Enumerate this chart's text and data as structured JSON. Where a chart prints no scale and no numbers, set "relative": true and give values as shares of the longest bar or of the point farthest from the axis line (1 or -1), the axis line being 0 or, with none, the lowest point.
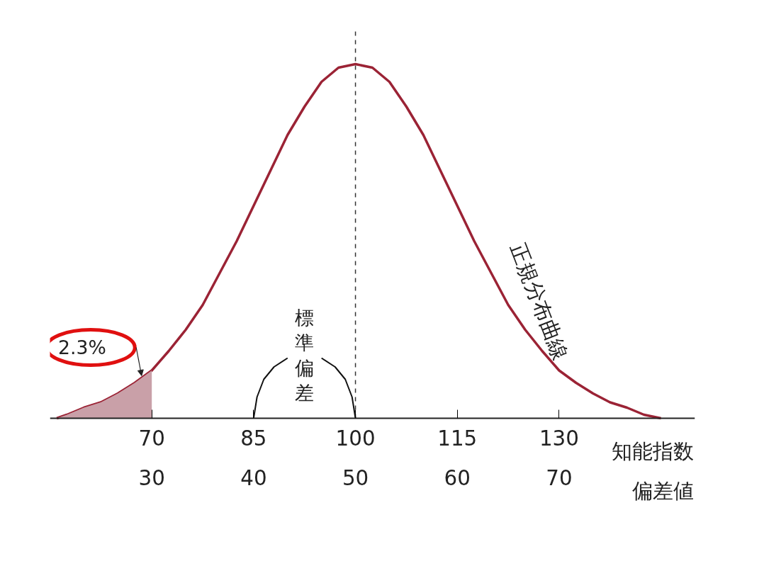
{
  "chart_data": {
    "type": "line",
    "relative": true,
    "xlabel": "知能指数",
    "x2label": "偏差値",
    "xlim": [
      55,
      150
    ],
    "xticks": [
      70,
      85,
      100,
      115,
      130
    ],
    "x2lim": [
      20,
      83.33
    ],
    "x2ticks": [
      30,
      40,
      50,
      60,
      70
    ],
    "series": [
      {
        "name": "正規分布曲線",
        "color": "#9b2335",
        "x": [
          56,
          57.5,
          60,
          62.5,
          65,
          67.5,
          70,
          72.5,
          75,
          77.5,
          80,
          82.5,
          85,
          87.5,
          90,
          92.5,
          95,
          97.5,
          100,
          102.5,
          105,
          107.5,
          110,
          112.5,
          115,
          117.5,
          120,
          122.5,
          125,
          127.5,
          130,
          132.5,
          135,
          137.5,
          140,
          142.5,
          145
        ],
        "values": [
          0,
          0.01,
          0.03,
          0.045,
          0.07,
          0.1,
          0.135,
          0.19,
          0.25,
          0.32,
          0.41,
          0.5,
          0.6,
          0.7,
          0.8,
          0.88,
          0.95,
          0.99,
          1,
          0.99,
          0.95,
          0.88,
          0.8,
          0.7,
          0.6,
          0.5,
          0.41,
          0.32,
          0.25,
          0.19,
          0.135,
          0.1,
          0.07,
          0.045,
          0.03,
          0.01,
          0
        ]
      },
      {
        "type": "area",
        "color": "#c9a0a8",
        "x": [
          56,
          57.5,
          60,
          62.5,
          65,
          67.5,
          70
        ],
        "values": [
          0,
          0.01,
          0.03,
          0.045,
          0.07,
          0.1,
          0.135
        ]
      },
      {
        "type": "line",
        "color": "#111111",
        "x": [
          85,
          85.5,
          86.5,
          88,
          90,
          92.5,
          95,
          97,
          98.5,
          99.5,
          100
        ],
        "values": [
          0,
          0.06,
          0.11,
          0.145,
          0.17,
          null,
          0.17,
          0.145,
          0.11,
          0.06,
          0
        ]
      }
    ],
    "ref_lines": [
      {
        "axis": "x",
        "value": 100,
        "color": "#333333",
        "line_style": "dashed"
      }
    ],
    "annotations": [
      "2.3%",
      "標準偏差"
    ],
    "legend": false,
    "grid": false,
    "marker": "none",
    "line_style": "solid"
  }
}
